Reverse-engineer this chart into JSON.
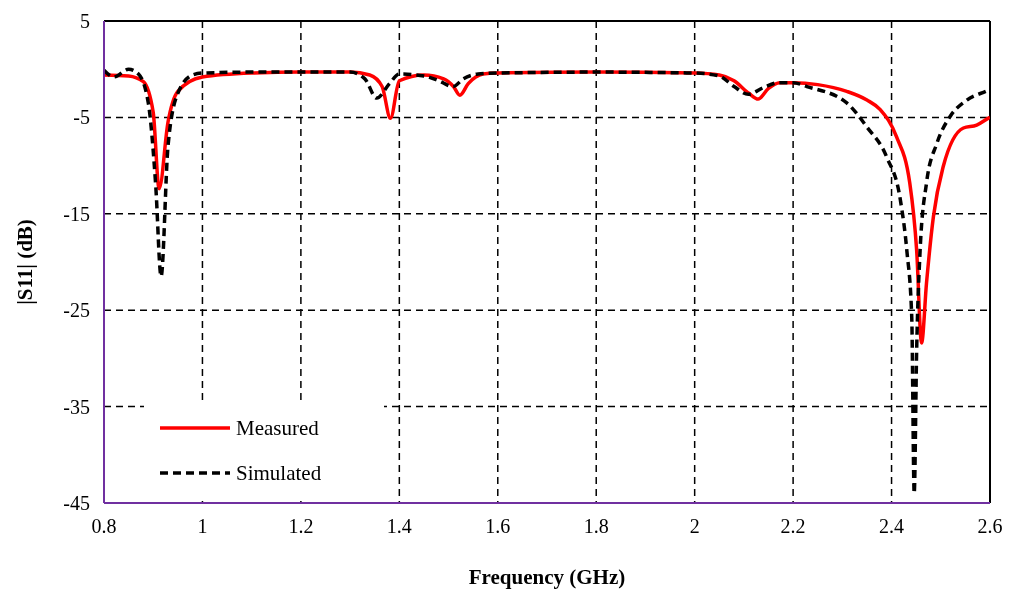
{
  "chart_data": {
    "type": "line",
    "xlabel": "Frequency (GHz)",
    "ylabel": "|S11| (dB)",
    "xlim": [
      0.8,
      2.6
    ],
    "ylim": [
      -45,
      5
    ],
    "xticks": [
      0.8,
      1,
      1.2,
      1.4,
      1.6,
      1.8,
      2,
      2.2,
      2.4,
      2.6
    ],
    "yticks": [
      5,
      -5,
      -15,
      -25,
      -35,
      -45
    ],
    "grid": true,
    "legend": "bottom left",
    "series": [
      {
        "name": "Measured",
        "color": "#ff0000",
        "line_style": "solid",
        "x": [
          0.8,
          0.85,
          0.88,
          0.9,
          0.912,
          0.93,
          0.95,
          1.0,
          1.1,
          1.2,
          1.3,
          1.34,
          1.365,
          1.382,
          1.4,
          1.45,
          1.49,
          1.51,
          1.523,
          1.54,
          1.57,
          1.6,
          1.8,
          2.0,
          2.05,
          2.08,
          2.11,
          2.129,
          2.15,
          2.173,
          2.2,
          2.25,
          2.309,
          2.35,
          2.377,
          2.41,
          2.437,
          2.451,
          2.461,
          2.471,
          2.485,
          2.505,
          2.546,
          2.573,
          2.596,
          2.6
        ],
        "values": [
          -0.6,
          -0.7,
          -1.3,
          -4.5,
          -12.4,
          -5.5,
          -2.3,
          -0.8,
          -0.4,
          -0.3,
          -0.3,
          -0.6,
          -1.8,
          -5.1,
          -1.2,
          -0.6,
          -1.0,
          -1.8,
          -2.7,
          -1.5,
          -0.5,
          -0.4,
          -0.3,
          -0.4,
          -0.6,
          -1.2,
          -2.5,
          -3.1,
          -2.0,
          -1.4,
          -1.4,
          -1.6,
          -2.3,
          -3.2,
          -4.2,
          -7.0,
          -11.8,
          -18.8,
          -28.4,
          -22.2,
          -15.3,
          -10.1,
          -6.1,
          -5.8,
          -5.1,
          -5.0
        ]
      },
      {
        "name": "Simulated",
        "color": "#000000",
        "line_style": "dashed",
        "x": [
          0.8,
          0.82,
          0.85,
          0.87,
          0.89,
          0.905,
          0.916,
          0.93,
          0.95,
          0.98,
          1.0,
          1.1,
          1.2,
          1.3,
          1.33,
          1.354,
          1.38,
          1.4,
          1.45,
          1.48,
          1.509,
          1.53,
          1.56,
          1.6,
          1.8,
          2.0,
          2.05,
          2.08,
          2.109,
          2.14,
          2.17,
          2.2,
          2.228,
          2.309,
          2.35,
          2.39,
          2.418,
          2.431,
          2.441,
          2.446,
          2.451,
          2.458,
          2.471,
          2.492,
          2.519,
          2.553,
          2.596,
          2.6
        ],
        "values": [
          -0.1,
          -0.8,
          0.0,
          -0.5,
          -3.5,
          -12.0,
          -21.5,
          -8.0,
          -2.5,
          -0.6,
          -0.4,
          -0.3,
          -0.3,
          -0.3,
          -1.0,
          -3.0,
          -1.5,
          -0.5,
          -0.7,
          -1.2,
          -1.8,
          -1.0,
          -0.5,
          -0.4,
          -0.3,
          -0.4,
          -0.7,
          -1.8,
          -2.6,
          -1.9,
          -1.4,
          -1.4,
          -1.8,
          -3.5,
          -6.0,
          -9.1,
          -13.6,
          -18.8,
          -25.7,
          -44.0,
          -29.1,
          -18.8,
          -11.8,
          -7.7,
          -4.9,
          -3.2,
          -2.2,
          -2.1
        ]
      }
    ]
  }
}
